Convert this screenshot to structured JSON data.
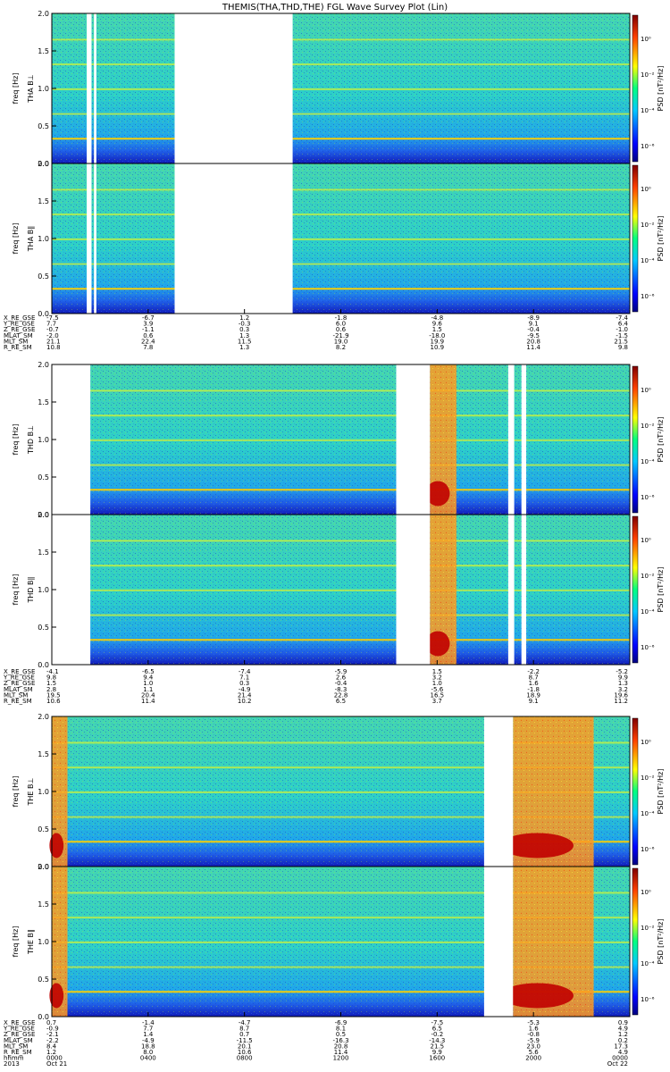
{
  "title": "THEMIS(THA,THD,THE) FGL Wave Survey Plot (Lin)",
  "colorbar": {
    "label": "PSD [nT²/Hz]",
    "ticks": [
      "10⁰",
      "10⁻²",
      "10⁻⁴",
      "10⁻⁶"
    ]
  },
  "axes": {
    "freq_label": "freq [Hz]",
    "freq_ticks": [
      "0.0",
      "0.5",
      "1.0",
      "1.5",
      "2.0"
    ],
    "ylim": [
      0,
      2.0
    ]
  },
  "probes": [
    {
      "id": "THA",
      "panels": [
        {
          "name": "THA B⊥",
          "ylabel": "THA B⊥"
        },
        {
          "name": "THA B∥",
          "ylabel": "THA B∥"
        }
      ],
      "ephemeris_labels": [
        "X_RE_GSE",
        "Y_RE_GSE",
        "Z_RE_GSE",
        "MLAT_SM",
        "MLT_SM",
        "R_RE_SM"
      ],
      "ephemeris_columns": [
        [
          "-7.5",
          "7.7",
          "-0.7",
          "-2.0",
          "21.1",
          "10.8"
        ],
        [
          "-6.7",
          "3.9",
          "-1.1",
          "0.6",
          "22.4",
          "7.8"
        ],
        [
          "1.2",
          "-0.3",
          "0.3",
          "1.3",
          "11.5",
          "1.3"
        ],
        [
          "-1.8",
          "6.0",
          "0.6",
          "-21.9",
          "19.0",
          "8.2"
        ],
        [
          "-4.8",
          "9.6",
          "1.5",
          "-18.0",
          "19.9",
          "10.9"
        ],
        [
          "-8.9",
          "9.1",
          "-0.4",
          "-9.5",
          "20.8",
          "11.4"
        ],
        [
          "-7.4",
          "6.4",
          "-1.0",
          "-1.5",
          "21.5",
          "9.8"
        ]
      ]
    },
    {
      "id": "THD",
      "panels": [
        {
          "name": "THD B⊥",
          "ylabel": "THD B⊥"
        },
        {
          "name": "THD B∥",
          "ylabel": "THD B∥"
        }
      ],
      "ephemeris_labels": [
        "X_RE_GSE",
        "Y_RE_GSE",
        "Z_RE_GSE",
        "MLAT_SM",
        "MLT_SM",
        "R_RE_SM"
      ],
      "ephemeris_columns": [
        [
          "-4.1",
          "9.8",
          "1.5",
          "2.8",
          "19.5",
          "10.6"
        ],
        [
          "-6.5",
          "9.4",
          "1.0",
          "1.1",
          "20.4",
          "11.4"
        ],
        [
          "-7.4",
          "7.1",
          "0.3",
          "-4.9",
          "21.4",
          "10.2"
        ],
        [
          "-5.9",
          "2.6",
          "-0.4",
          "-8.3",
          "22.8",
          "6.5"
        ],
        [
          "1.5",
          "3.2",
          "1.0",
          "-5.6",
          "16.5",
          "3.7"
        ],
        [
          "-2.2",
          "8.7",
          "1.6",
          "-1.8",
          "18.9",
          "9.1"
        ],
        [
          "-5.2",
          "9.9",
          "1.3",
          "3.2",
          "19.6",
          "11.2"
        ]
      ]
    },
    {
      "id": "THE",
      "panels": [
        {
          "name": "THE B⊥",
          "ylabel": "THE B⊥"
        },
        {
          "name": "THE B∥",
          "ylabel": "THE B∥"
        }
      ],
      "ephemeris_labels": [
        "X_RE_GSE",
        "Y_RE_GSE",
        "Z_RE_GSE",
        "MLAT_SM",
        "MLT_SM",
        "R_RE_SM",
        "hhmm",
        "2013"
      ],
      "ephemeris_columns": [
        [
          "0.7",
          "-0.9",
          "-2.1",
          "-2.2",
          "8.4",
          "1.2",
          "0000",
          "Oct 21"
        ],
        [
          "-1.4",
          "7.7",
          "1.4",
          "-4.9",
          "18.8",
          "8.0",
          "0400",
          ""
        ],
        [
          "-4.7",
          "8.7",
          "0.7",
          "-11.5",
          "20.1",
          "10.6",
          "0800",
          ""
        ],
        [
          "-6.9",
          "8.1",
          "0.5",
          "-16.3",
          "20.8",
          "11.4",
          "1200",
          ""
        ],
        [
          "-7.5",
          "6.5",
          "-0.2",
          "-14.3",
          "21.5",
          "9.9",
          "1600",
          ""
        ],
        [
          "-5.3",
          "1.6",
          "-0.8",
          "-5.9",
          "23.0",
          "5.6",
          "2000",
          ""
        ],
        [
          "0.9",
          "4.9",
          "1.2",
          "0.2",
          "17.3",
          "4.9",
          "0000",
          "Oct 22"
        ]
      ]
    }
  ],
  "chart_data": {
    "type": "heatmap",
    "title": "THEMIS(THA,THD,THE) FGL Wave Survey Plot (Lin)",
    "x_ticks": [
      "0000",
      "0400",
      "0800",
      "1200",
      "1600",
      "2000",
      "0000"
    ],
    "xlabel": "hhmm",
    "ylabel": "freq [Hz]",
    "ylim": [
      0,
      2.0
    ],
    "colorbar_label": "PSD [nT²/Hz]",
    "colorbar_scale": "log",
    "colorbar_range": [
      1e-06,
      10
    ],
    "panels": [
      "THA B⊥",
      "THA B∥",
      "THD B⊥",
      "THD B∥",
      "THE B⊥",
      "THE B∥"
    ],
    "harmonic_lines_hz": [
      0.33,
      0.66,
      0.99,
      1.32,
      1.65
    ],
    "data_gaps_hours": {
      "THA": [
        [
          1.45,
          1.65
        ],
        [
          1.75,
          1.85
        ],
        [
          5.1,
          10.0
        ]
      ],
      "THD": [
        [
          0.0,
          1.6
        ],
        [
          14.3,
          15.7
        ],
        [
          18.95,
          19.2
        ],
        [
          19.5,
          19.7
        ]
      ],
      "THE": [
        [
          17.95,
          19.15
        ]
      ]
    },
    "high_power_intervals_hours": {
      "THD": [
        [
          15.7,
          16.8
        ]
      ],
      "THE": [
        [
          0.0,
          0.65
        ],
        [
          19.15,
          22.5
        ]
      ]
    }
  }
}
